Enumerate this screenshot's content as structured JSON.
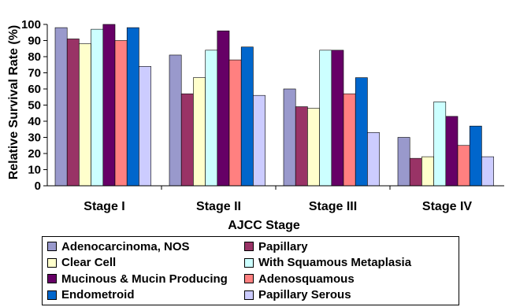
{
  "chart_data": {
    "type": "bar",
    "title": "",
    "xlabel": "AJCC Stage",
    "ylabel": "Relative Survival Rate (%)",
    "ylim": [
      0,
      100
    ],
    "yticks": [
      0,
      10,
      20,
      30,
      40,
      50,
      60,
      70,
      80,
      90,
      100
    ],
    "grid": false,
    "legend_position": "bottom",
    "categories": [
      "Stage I",
      "Stage II",
      "Stage III",
      "Stage IV"
    ],
    "series": [
      {
        "name": "Adenocarcinoma, NOS",
        "color": "#9999cc",
        "values": [
          98,
          81,
          60,
          30
        ]
      },
      {
        "name": "Papillary",
        "color": "#993366",
        "values": [
          91,
          57,
          49,
          17
        ]
      },
      {
        "name": "Clear Cell",
        "color": "#ffffcc",
        "values": [
          88,
          67,
          48,
          18
        ]
      },
      {
        "name": "With Squamous Metaplasia",
        "color": "#ccffff",
        "values": [
          97,
          84,
          84,
          52
        ]
      },
      {
        "name": "Mucinous & Mucin Producing",
        "color": "#660066",
        "values": [
          100,
          96,
          84,
          43
        ]
      },
      {
        "name": "Adenosquamous",
        "color": "#ff8080",
        "values": [
          90,
          78,
          57,
          25
        ]
      },
      {
        "name": "Endometroid",
        "color": "#0066cc",
        "values": [
          98,
          86,
          67,
          37
        ]
      },
      {
        "name": "Papillary Serous",
        "color": "#ccccff",
        "values": [
          74,
          56,
          33,
          18
        ]
      }
    ]
  }
}
